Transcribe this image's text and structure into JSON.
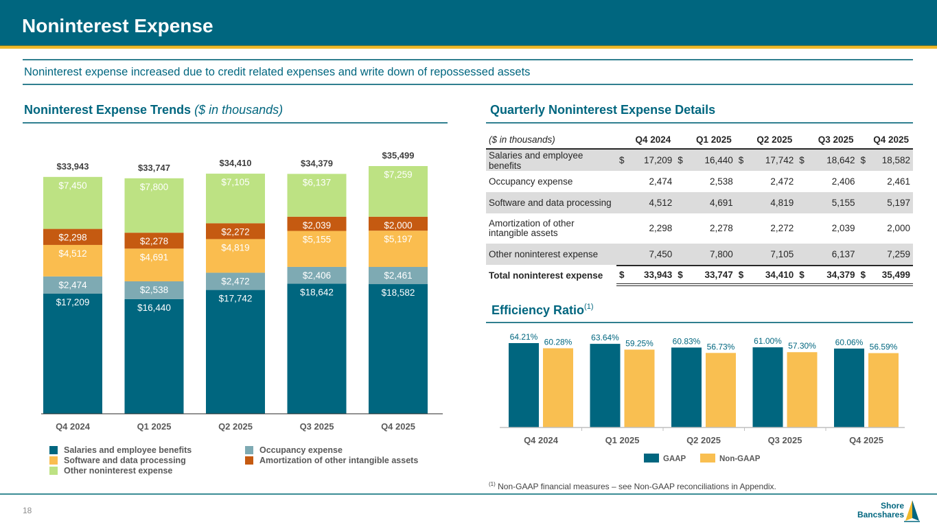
{
  "header": {
    "title": "Noninterest Expense",
    "subtitle": "Noninterest expense increased due to credit related expenses and write down of repossessed assets"
  },
  "left_section": {
    "title": "Noninterest Expense Trends",
    "title_suffix": "($ in thousands)"
  },
  "right_section": {
    "table_title": "Quarterly Noninterest Expense Details",
    "chart_title": "Efficiency Ratio",
    "chart_title_sup": "(1)"
  },
  "colors": {
    "brand_teal": "#00667f",
    "accent_gold": "#f0b82a",
    "salaries": "#00667f",
    "occupancy": "#7eaab3",
    "software": "#fabd4f",
    "amortization": "#c55a11",
    "other": "#bde283",
    "gaap": "#00667f",
    "non_gaap": "#f9bf51"
  },
  "table": {
    "unit_label": "($ in thousands)",
    "columns": [
      "Q4 2024",
      "Q1 2025",
      "Q2 2025",
      "Q3 2025",
      "Q4 2025"
    ],
    "currency_symbol": "$",
    "rows": [
      {
        "label": "Salaries and employee benefits",
        "values": [
          "17,209",
          "16,440",
          "17,742",
          "18,642",
          "18,582"
        ],
        "currency": true
      },
      {
        "label": "Occupancy expense",
        "values": [
          "2,474",
          "2,538",
          "2,472",
          "2,406",
          "2,461"
        ],
        "currency": false
      },
      {
        "label": "Software and data processing",
        "values": [
          "4,512",
          "4,691",
          "4,819",
          "5,155",
          "5,197"
        ],
        "currency": false
      },
      {
        "label": "Amortization of other intangible assets",
        "values": [
          "2,298",
          "2,278",
          "2,272",
          "2,039",
          "2,000"
        ],
        "currency": false
      },
      {
        "label": "Other noninterest expense",
        "values": [
          "7,450",
          "7,800",
          "7,105",
          "6,137",
          "7,259"
        ],
        "currency": false
      }
    ],
    "total": {
      "label": "Total noninterest expense",
      "values": [
        "33,943",
        "33,747",
        "34,410",
        "34,379",
        "35,499"
      ]
    }
  },
  "chart_data": [
    {
      "type": "bar",
      "stacked": true,
      "title": "Noninterest Expense Trends ($ in thousands)",
      "xlabel": "",
      "ylabel": "",
      "ylim": [
        0,
        36000
      ],
      "grid": false,
      "legend_position": "bottom",
      "categories": [
        "Q4 2024",
        "Q1 2025",
        "Q2 2025",
        "Q3 2025",
        "Q4 2025"
      ],
      "series": [
        {
          "name": "Salaries and employee benefits",
          "color_key": "salaries",
          "values": [
            17209,
            16440,
            17742,
            18642,
            18582
          ],
          "labels": [
            "$17,209",
            "$16,440",
            "$17,742",
            "$18,642",
            "$18,582"
          ]
        },
        {
          "name": "Occupancy expense",
          "color_key": "occupancy",
          "values": [
            2474,
            2538,
            2472,
            2406,
            2461
          ],
          "labels": [
            "$2,474",
            "$2,538",
            "$2,472",
            "$2,406",
            "$2,461"
          ]
        },
        {
          "name": "Software and data processing",
          "color_key": "software",
          "values": [
            4512,
            4691,
            4819,
            5155,
            5197
          ],
          "labels": [
            "$4,512",
            "$4,691",
            "$4,819",
            "$5,155",
            "$5,197"
          ]
        },
        {
          "name": "Amortization of other intangible assets",
          "color_key": "amortization",
          "values": [
            2298,
            2278,
            2272,
            2039,
            2000
          ],
          "labels": [
            "$2,298",
            "$2,278",
            "$2,272",
            "$2,039",
            "$2,000"
          ]
        },
        {
          "name": "Other noninterest expense",
          "color_key": "other",
          "values": [
            7450,
            7800,
            7105,
            6137,
            7259
          ],
          "labels": [
            "$7,450",
            "$7,800",
            "$7,105",
            "$6,137",
            "$7,259"
          ]
        }
      ],
      "totals": [
        33943,
        33747,
        34410,
        34379,
        35499
      ],
      "total_labels": [
        "$33,943",
        "$33,747",
        "$34,410",
        "$34,379",
        "$35,499"
      ],
      "legend_order": [
        "Salaries and employee benefits",
        "Occupancy expense",
        "Software and data processing",
        "Amortization of other intangible assets",
        "Other noninterest expense"
      ]
    },
    {
      "type": "bar",
      "stacked": false,
      "title": "Efficiency Ratio(1)",
      "xlabel": "",
      "ylabel": "",
      "ylim": [
        0,
        66
      ],
      "grid": false,
      "legend_position": "bottom",
      "categories": [
        "Q4 2024",
        "Q1 2025",
        "Q2 2025",
        "Q3 2025",
        "Q4 2025"
      ],
      "series": [
        {
          "name": "GAAP",
          "color_key": "gaap",
          "values": [
            64.21,
            63.64,
            60.83,
            61.0,
            60.06
          ],
          "labels": [
            "64.21%",
            "63.64%",
            "60.83%",
            "61.00%",
            "60.06%"
          ]
        },
        {
          "name": "Non-GAAP",
          "color_key": "non_gaap",
          "values": [
            60.28,
            59.25,
            56.73,
            57.3,
            56.59
          ],
          "labels": [
            "60.28%",
            "59.25%",
            "56.73%",
            "57.30%",
            "56.59%"
          ]
        }
      ]
    }
  ],
  "footnote": {
    "marker": "(1)",
    "text": " Non-GAAP financial measures – see Non-GAAP reconciliations in Appendix."
  },
  "footer": {
    "page_number": "18",
    "logo_line1": "Shore",
    "logo_line2": "Bancshares"
  }
}
